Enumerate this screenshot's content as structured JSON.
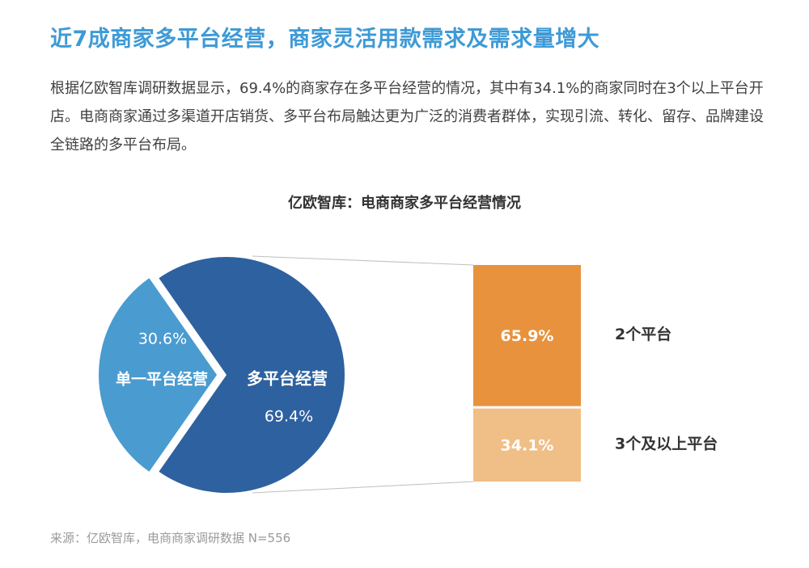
{
  "header": {
    "title": "近7成商家多平台经营，商家灵活用款需求及需求量增大",
    "paragraph": "根据亿欧智库调研数据显示，69.4%的商家存在多平台经营的情况，其中有34.1%的商家同时在3个以上平台开店。电商商家通过多渠道开店销货、多平台布局触达更为广泛的消费者群体，实现引流、转化、留存、品牌建设全链路的多平台布局。"
  },
  "chart_data": [
    {
      "type": "pie",
      "title": "亿欧智库：电商商家多平台经营情况",
      "slices": [
        {
          "label": "多平台经营",
          "value": 69.4,
          "value_label": "69.4%",
          "color": "#2e619f"
        },
        {
          "label": "单一平台经营",
          "value": 30.6,
          "value_label": "30.6%",
          "color": "#4a9bd0"
        }
      ]
    },
    {
      "type": "bar",
      "stacked": true,
      "series": [
        {
          "label": "2个平台",
          "value": 65.9,
          "value_label": "65.9%",
          "color": "#e8923d"
        },
        {
          "label": "3个及以上平台",
          "value": 34.1,
          "value_label": "34.1%",
          "color": "#f0be87"
        }
      ]
    }
  ],
  "footer": {
    "source": "来源：亿欧智库，电商商家调研数据 N=556"
  }
}
